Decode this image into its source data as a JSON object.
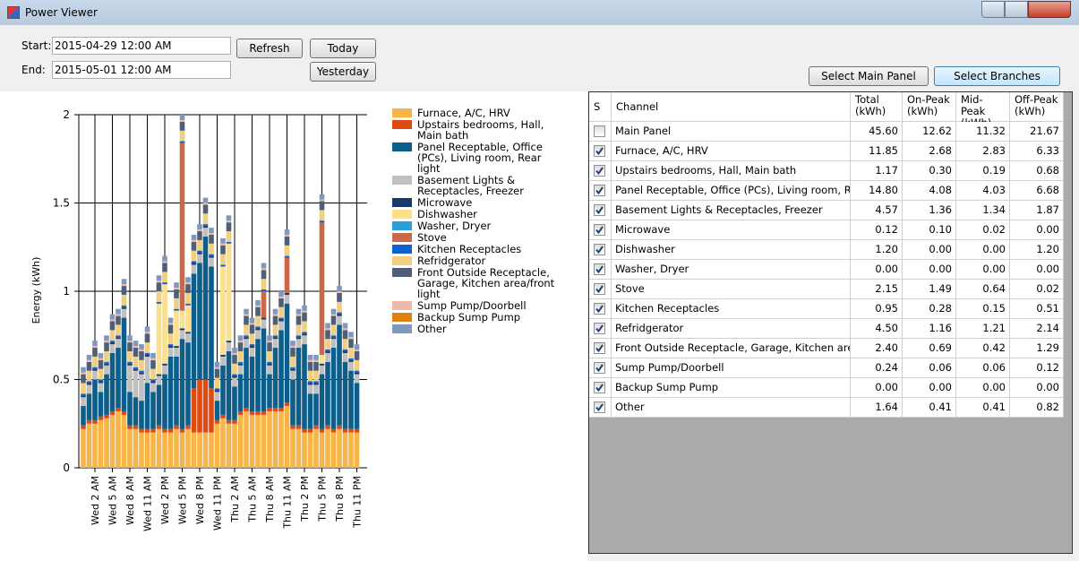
{
  "window": {
    "title": "Power Viewer"
  },
  "controls": {
    "start_label": "Start:",
    "start_value": "2015-04-29 12:00 AM",
    "end_label": "End:",
    "end_value": "2015-05-01 12:00 AM",
    "refresh": "Refresh",
    "today": "Today",
    "yesterday": "Yesterday",
    "select_main": "Select Main Panel",
    "select_branches": "Select Branches"
  },
  "chart_data": {
    "type": "bar",
    "stacked": true,
    "y_label": "Energy (kWh)",
    "ylim": [
      0,
      2
    ],
    "yticks": [
      0,
      0.5,
      1,
      1.5,
      2
    ],
    "grid": true,
    "categories": [
      null,
      null,
      "Wed 2 AM",
      null,
      null,
      "Wed 5 AM",
      null,
      null,
      "Wed 8 AM",
      null,
      null,
      "Wed 11 AM",
      null,
      null,
      "Wed 2 PM",
      null,
      null,
      "Wed 5 PM",
      null,
      null,
      "Wed 8 PM",
      null,
      null,
      "Wed 11 PM",
      null,
      null,
      "Thu 2 AM",
      null,
      null,
      "Thu 5 AM",
      null,
      null,
      "Thu 8 AM",
      null,
      null,
      "Thu 11 AM",
      null,
      null,
      "Thu 2 PM",
      null,
      null,
      "Thu 5 PM",
      null,
      null,
      "Thu 8 PM",
      null,
      null,
      "Thu 11 PM"
    ],
    "series": [
      {
        "name": "Furnace, A/C, HRV",
        "color": "#f7b548",
        "values": [
          0.22,
          0.25,
          0.25,
          0.27,
          0.28,
          0.3,
          0.32,
          0.3,
          0.22,
          0.22,
          0.2,
          0.2,
          0.2,
          0.22,
          0.2,
          0.2,
          0.22,
          0.2,
          0.22,
          0.2,
          0.2,
          0.2,
          0.2,
          0.25,
          0.28,
          0.25,
          0.25,
          0.3,
          0.32,
          0.3,
          0.3,
          0.3,
          0.32,
          0.32,
          0.32,
          0.35,
          0.22,
          0.22,
          0.2,
          0.2,
          0.22,
          0.2,
          0.22,
          0.2,
          0.22,
          0.2,
          0.2,
          0.2
        ]
      },
      {
        "name": "Upstairs bedrooms, Hall, Main bath",
        "color": "#e04a10",
        "values": [
          0.02,
          0.02,
          0.02,
          0.02,
          0.02,
          0.02,
          0.02,
          0.02,
          0.02,
          0.02,
          0.02,
          0.02,
          0.02,
          0.02,
          0.02,
          0.02,
          0.02,
          0.02,
          0.02,
          0.25,
          0.3,
          0.3,
          0.25,
          0.02,
          0.02,
          0.02,
          0.02,
          0.02,
          0.02,
          0.02,
          0.02,
          0.02,
          0.02,
          0.02,
          0.02,
          0.02,
          0.02,
          0.02,
          0.02,
          0.02,
          0.02,
          0.02,
          0.02,
          0.02,
          0.02,
          0.02,
          0.02,
          0.02
        ]
      },
      {
        "name": "Panel Receptable, Office (PCs), Living room, Rear light",
        "color": "#0d5f8a",
        "values": [
          0.11,
          0.15,
          0.23,
          0.14,
          0.23,
          0.33,
          0.34,
          0.53,
          0.19,
          0.16,
          0.16,
          0.26,
          0.21,
          0.23,
          0.31,
          0.41,
          0.39,
          0.51,
          0.47,
          0.65,
          0.66,
          0.81,
          0.69,
          0.11,
          0.28,
          0.39,
          0.19,
          0.21,
          0.34,
          0.31,
          0.41,
          0.47,
          0.19,
          0.34,
          0.44,
          0.56,
          0.26,
          0.44,
          0.48,
          0.2,
          0.18,
          0.31,
          0.36,
          0.46,
          0.57,
          0.38,
          0.33,
          0.26
        ]
      },
      {
        "name": "Basement Lights & Receptacles, Freezer",
        "color": "#c0c0c0",
        "values": [
          0.05,
          0.05,
          0.05,
          0.05,
          0.05,
          0.05,
          0.05,
          0.05,
          0.15,
          0.15,
          0.15,
          0.15,
          0.05,
          0.05,
          0.05,
          0.05,
          0.05,
          0.05,
          0.05,
          0.05,
          0.05,
          0.05,
          0.05,
          0.05,
          0.05,
          0.05,
          0.05,
          0.05,
          0.05,
          0.05,
          0.05,
          0.05,
          0.05,
          0.05,
          0.05,
          0.05,
          0.05,
          0.05,
          0.05,
          0.05,
          0.05,
          0.05,
          0.05,
          0.05,
          0.05,
          0.05,
          0.05,
          0.05
        ]
      },
      {
        "name": "Microwave",
        "color": "#1b3a6b",
        "values": [
          0.01,
          0.01,
          0.01,
          0.01,
          0.01,
          0.01,
          0.01,
          0.01,
          0.01,
          0.01,
          0.01,
          0.01,
          0.01,
          0.01,
          0.01,
          0.01,
          0.01,
          0.01,
          0.01,
          0.01,
          0.01,
          0.01,
          0.01,
          0.01,
          0.01,
          0.01,
          0.01,
          0.01,
          0.01,
          0.01,
          0.01,
          0.01,
          0.01,
          0.01,
          0.01,
          0.01,
          0.01,
          0.01,
          0.01,
          0.01,
          0.01,
          0.01,
          0.01,
          0.01,
          0.01,
          0.01,
          0.01,
          0.01
        ]
      },
      {
        "name": "Dishwasher",
        "color": "#fde08a",
        "values": [
          0,
          0,
          0,
          0,
          0,
          0,
          0,
          0,
          0,
          0,
          0,
          0,
          0,
          0.4,
          0.45,
          0,
          0.2,
          0.1,
          0.15,
          0,
          0,
          0,
          0,
          0,
          0.5,
          0.55,
          0,
          0,
          0,
          0,
          0,
          0,
          0,
          0,
          0,
          0,
          0,
          0,
          0,
          0,
          0,
          0.05,
          0,
          0,
          0,
          0,
          0,
          0
        ]
      },
      {
        "name": "Washer, Dryer",
        "color": "#2a9fd8",
        "values": [
          0,
          0,
          0,
          0,
          0,
          0,
          0,
          0,
          0,
          0,
          0,
          0,
          0,
          0,
          0,
          0,
          0,
          0,
          0,
          0,
          0,
          0,
          0,
          0,
          0,
          0,
          0,
          0,
          0,
          0,
          0,
          0,
          0,
          0,
          0,
          0,
          0,
          0,
          0,
          0,
          0,
          0,
          0,
          0,
          0,
          0,
          0,
          0
        ]
      },
      {
        "name": "Stove",
        "color": "#c8694a",
        "values": [
          0,
          0,
          0,
          0,
          0,
          0,
          0,
          0,
          0,
          0,
          0,
          0,
          0,
          0,
          0,
          0,
          0,
          0.95,
          0,
          0,
          0,
          0,
          0,
          0,
          0,
          0,
          0,
          0,
          0,
          0,
          0,
          0.15,
          0,
          0,
          0,
          0.2,
          0,
          0,
          0,
          0,
          0,
          0.75,
          0,
          0,
          0,
          0,
          0,
          0
        ]
      },
      {
        "name": "Kitchen Receptacles",
        "color": "#1060d0",
        "values": [
          0.01,
          0.01,
          0.01,
          0.01,
          0.01,
          0.01,
          0.01,
          0.01,
          0.01,
          0.01,
          0.01,
          0.01,
          0.01,
          0.01,
          0.01,
          0.01,
          0.01,
          0.01,
          0.01,
          0.01,
          0.01,
          0.01,
          0.01,
          0.01,
          0.01,
          0.01,
          0.01,
          0.01,
          0.01,
          0.01,
          0.01,
          0.01,
          0.01,
          0.01,
          0.01,
          0.01,
          0.01,
          0.01,
          0.01,
          0.01,
          0.01,
          0.01,
          0.01,
          0.01,
          0.01,
          0.01,
          0.01,
          0.01
        ]
      },
      {
        "name": "Refridgerator",
        "color": "#f0cf80",
        "values": [
          0.06,
          0.06,
          0.06,
          0.06,
          0.06,
          0.06,
          0.06,
          0.06,
          0.06,
          0.06,
          0.06,
          0.06,
          0.06,
          0.06,
          0.06,
          0.06,
          0.06,
          0.06,
          0.06,
          0.06,
          0.06,
          0.06,
          0.06,
          0.06,
          0.06,
          0.06,
          0.06,
          0.06,
          0.06,
          0.06,
          0.06,
          0.06,
          0.06,
          0.06,
          0.06,
          0.06,
          0.06,
          0.06,
          0.06,
          0.06,
          0.06,
          0.06,
          0.06,
          0.06,
          0.06,
          0.06,
          0.06,
          0.06
        ]
      },
      {
        "name": "Front Outside Receptacle, Garage, Kitchen area/front light",
        "color": "#4f5f78",
        "values": [
          0.05,
          0.05,
          0.05,
          0.05,
          0.05,
          0.05,
          0.05,
          0.05,
          0.05,
          0.05,
          0.05,
          0.05,
          0.05,
          0.05,
          0.05,
          0.05,
          0.05,
          0.05,
          0.05,
          0.05,
          0.05,
          0.05,
          0.05,
          0.05,
          0.05,
          0.05,
          0.05,
          0.05,
          0.05,
          0.05,
          0.05,
          0.05,
          0.05,
          0.05,
          0.05,
          0.05,
          0.05,
          0.05,
          0.05,
          0.05,
          0.05,
          0.05,
          0.05,
          0.05,
          0.05,
          0.05,
          0.05,
          0.05
        ]
      },
      {
        "name": "Sump Pump/Doorbell",
        "color": "#f0b8a8",
        "values": [
          0.01,
          0.01,
          0.01,
          0.01,
          0.01,
          0.01,
          0.01,
          0.01,
          0.01,
          0.01,
          0.01,
          0.01,
          0.01,
          0.01,
          0.01,
          0.01,
          0.01,
          0.01,
          0.01,
          0.01,
          0.01,
          0.01,
          0.01,
          0.01,
          0.01,
          0.01,
          0.01,
          0.01,
          0.01,
          0.01,
          0.01,
          0.01,
          0.01,
          0.01,
          0.01,
          0.01,
          0.01,
          0.01,
          0.01,
          0.01,
          0.01,
          0.01,
          0.01,
          0.01,
          0.01,
          0.01,
          0.01,
          0.01
        ]
      },
      {
        "name": "Backup Sump Pump",
        "color": "#e08010",
        "values": [
          0,
          0,
          0,
          0,
          0,
          0,
          0,
          0,
          0,
          0,
          0,
          0,
          0,
          0,
          0,
          0,
          0,
          0,
          0,
          0,
          0,
          0,
          0,
          0,
          0,
          0,
          0,
          0,
          0,
          0,
          0,
          0,
          0,
          0,
          0,
          0,
          0,
          0,
          0,
          0,
          0,
          0,
          0,
          0,
          0,
          0,
          0,
          0
        ]
      },
      {
        "name": "Other",
        "color": "#7f98c0",
        "values": [
          0.03,
          0.03,
          0.03,
          0.03,
          0.03,
          0.03,
          0.03,
          0.03,
          0.03,
          0.03,
          0.03,
          0.03,
          0.03,
          0.03,
          0.03,
          0.03,
          0.03,
          0.03,
          0.03,
          0.03,
          0.03,
          0.03,
          0.03,
          0.03,
          0.03,
          0.03,
          0.03,
          0.03,
          0.03,
          0.03,
          0.03,
          0.03,
          0.03,
          0.03,
          0.03,
          0.03,
          0.03,
          0.03,
          0.03,
          0.03,
          0.03,
          0.03,
          0.03,
          0.03,
          0.03,
          0.03,
          0.03,
          0.03
        ]
      }
    ]
  },
  "table": {
    "headers": [
      "S",
      "Channel",
      "Total (kWh)",
      "On-Peak (kWh)",
      "Mid-Peak (kWh)",
      "Off-Peak (kWh)"
    ],
    "rows": [
      {
        "checked": false,
        "cells": [
          "Main Panel",
          "45.60",
          "12.62",
          "11.32",
          "21.67"
        ]
      },
      {
        "checked": true,
        "cells": [
          "Furnace, A/C, HRV",
          "11.85",
          "2.68",
          "2.83",
          "6.33"
        ]
      },
      {
        "checked": true,
        "cells": [
          "Upstairs bedrooms, Hall, Main bath",
          "1.17",
          "0.30",
          "0.19",
          "0.68"
        ]
      },
      {
        "checked": true,
        "cells": [
          "Panel Receptable, Office (PCs), Living room, Rear li...",
          "14.80",
          "4.08",
          "4.03",
          "6.68"
        ]
      },
      {
        "checked": true,
        "cells": [
          "Basement Lights & Receptacles, Freezer",
          "4.57",
          "1.36",
          "1.34",
          "1.87"
        ]
      },
      {
        "checked": true,
        "cells": [
          "Microwave",
          "0.12",
          "0.10",
          "0.02",
          "0.00"
        ]
      },
      {
        "checked": true,
        "cells": [
          "Dishwasher",
          "1.20",
          "0.00",
          "0.00",
          "1.20"
        ]
      },
      {
        "checked": true,
        "cells": [
          "Washer, Dryer",
          "0.00",
          "0.00",
          "0.00",
          "0.00"
        ]
      },
      {
        "checked": true,
        "cells": [
          "Stove",
          "2.15",
          "1.49",
          "0.64",
          "0.02"
        ]
      },
      {
        "checked": true,
        "cells": [
          "Kitchen Receptacles",
          "0.95",
          "0.28",
          "0.15",
          "0.51"
        ]
      },
      {
        "checked": true,
        "cells": [
          "Refridgerator",
          "4.50",
          "1.16",
          "1.21",
          "2.14"
        ]
      },
      {
        "checked": true,
        "cells": [
          "Front Outside Receptacle, Garage, Kitchen area/fro...",
          "2.40",
          "0.69",
          "0.42",
          "1.29"
        ]
      },
      {
        "checked": true,
        "cells": [
          "Sump Pump/Doorbell",
          "0.24",
          "0.06",
          "0.06",
          "0.12"
        ]
      },
      {
        "checked": true,
        "cells": [
          "Backup Sump Pump",
          "0.00",
          "0.00",
          "0.00",
          "0.00"
        ]
      },
      {
        "checked": true,
        "cells": [
          "Other",
          "1.64",
          "0.41",
          "0.41",
          "0.82"
        ]
      }
    ]
  }
}
